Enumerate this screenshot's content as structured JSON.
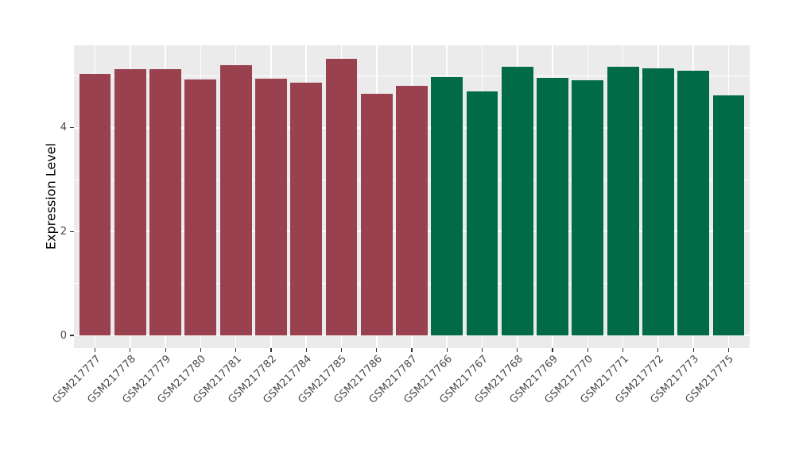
{
  "figure": {
    "background": "#ffffff"
  },
  "panel": {
    "background": "#ebebeb",
    "gridline_color": "#ffffff",
    "tick_mark_color": "#333333",
    "tick_label_color": "#4a4a4a"
  },
  "chart_data": {
    "type": "bar",
    "title": "",
    "xlabel": "",
    "ylabel": "Expression Level",
    "categories": [
      "GSM217777",
      "GSM217778",
      "GSM217779",
      "GSM217780",
      "GSM217781",
      "GSM217782",
      "GSM217784",
      "GSM217785",
      "GSM217786",
      "GSM217787",
      "GSM217766",
      "GSM217767",
      "GSM217768",
      "GSM217769",
      "GSM217770",
      "GSM217771",
      "GSM217772",
      "GSM217773",
      "GSM217775"
    ],
    "values": [
      5.03,
      5.13,
      5.13,
      4.93,
      5.2,
      4.95,
      4.87,
      5.33,
      4.65,
      4.81,
      4.98,
      4.7,
      5.18,
      4.96,
      4.92,
      5.17,
      5.15,
      5.09,
      4.62
    ],
    "bar_colors": [
      "#9A4150",
      "#9A4150",
      "#9A4150",
      "#9A4150",
      "#9A4150",
      "#9A4150",
      "#9A4150",
      "#9A4150",
      "#9A4150",
      "#9A4150",
      "#016A47",
      "#016A47",
      "#016A47",
      "#016A47",
      "#016A47",
      "#016A47",
      "#016A47",
      "#016A47",
      "#016A47"
    ],
    "group_colors": {
      "left_group": "#9A4150",
      "right_group": "#016A47"
    },
    "yticks": [
      "0",
      "2",
      "4"
    ],
    "ytick_values": [
      0,
      2,
      4
    ],
    "yminor_values": [
      1,
      3,
      5
    ],
    "ylim": [
      0,
      5.59
    ],
    "grid": "white major and minor gridlines on gray panel",
    "legend_position": "none"
  }
}
